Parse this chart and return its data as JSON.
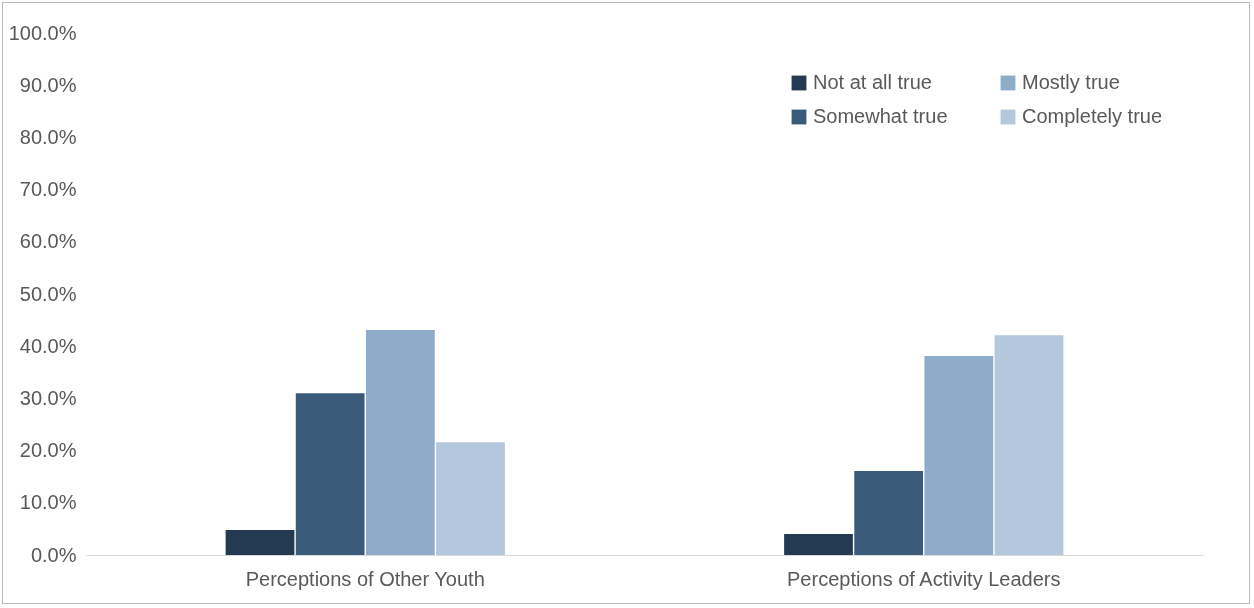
{
  "chart_data": {
    "type": "bar",
    "categories": [
      "Perceptions of Other Youth",
      "Perceptions of Activity Leaders"
    ],
    "series": [
      {
        "name": "Not at all true",
        "color": "#243a52",
        "values": [
          4.8,
          4.0
        ]
      },
      {
        "name": "Somewhat true",
        "color": "#3a5a7a",
        "values": [
          31.0,
          16.1
        ]
      },
      {
        "name": "Mostly true",
        "color": "#8eabc9",
        "values": [
          43.1,
          38.1
        ]
      },
      {
        "name": "Completely true",
        "color": "#b3c8dd",
        "values": [
          21.6,
          42.1
        ]
      }
    ],
    "ylim": [
      0,
      100
    ],
    "yticks": [
      {
        "value": 0,
        "label": "0.0%"
      },
      {
        "value": 10,
        "label": "10.0%"
      },
      {
        "value": 20,
        "label": "20.0%"
      },
      {
        "value": 30,
        "label": "30.0%"
      },
      {
        "value": 40,
        "label": "40.0%"
      },
      {
        "value": 50,
        "label": "50.0%"
      },
      {
        "value": 60,
        "label": "60.0%"
      },
      {
        "value": 70,
        "label": "70.0%"
      },
      {
        "value": 80,
        "label": "80.0%"
      },
      {
        "value": 90,
        "label": "90.0%"
      },
      {
        "value": 100,
        "label": "100.0%"
      }
    ],
    "grid": false,
    "legend": "top right"
  }
}
